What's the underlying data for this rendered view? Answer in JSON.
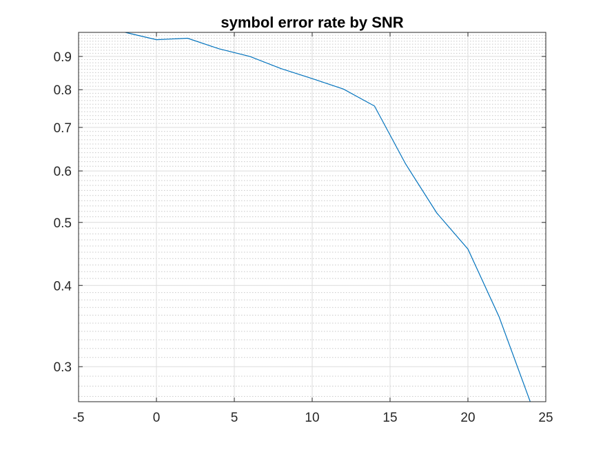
{
  "chart_data": {
    "type": "line",
    "title": "symbol error rate by SNR",
    "xlabel": "",
    "ylabel": "",
    "xlim": [
      -5,
      25
    ],
    "ylim": [
      0.265,
      0.98
    ],
    "y_scale": "log",
    "grid": true,
    "minor_grid": true,
    "x_ticks": [
      -5,
      0,
      5,
      10,
      15,
      20,
      25
    ],
    "x_tick_labels": [
      "-5",
      "0",
      "5",
      "10",
      "15",
      "20",
      "25"
    ],
    "y_ticks": [
      0.3,
      0.4,
      0.5,
      0.6,
      0.7,
      0.8,
      0.9
    ],
    "y_tick_labels": [
      "0.3",
      "0.4",
      "0.5",
      "0.6",
      "0.7",
      "0.8",
      "0.9"
    ],
    "series": [
      {
        "color": "#0072bd",
        "x": [
          -2,
          0,
          2,
          4,
          6,
          8,
          10,
          12,
          14,
          16,
          18,
          20,
          22,
          24
        ],
        "values": [
          0.98,
          0.955,
          0.96,
          0.925,
          0.9,
          0.862,
          0.832,
          0.802,
          0.755,
          0.615,
          0.517,
          0.455,
          0.358,
          0.265
        ]
      }
    ]
  }
}
